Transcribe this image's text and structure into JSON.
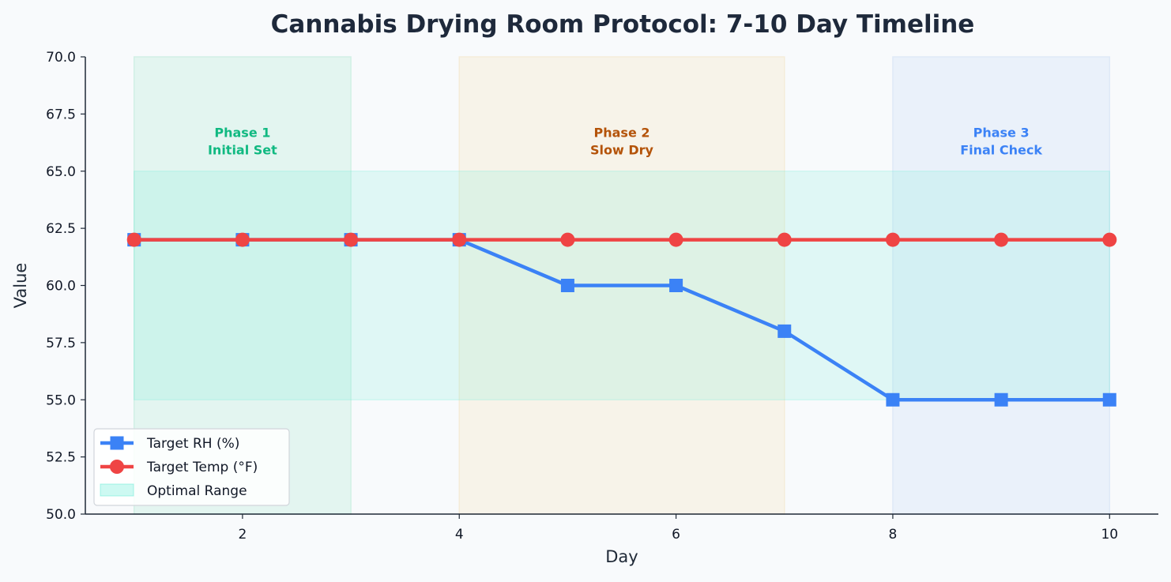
{
  "chart_data": {
    "type": "line",
    "title": "Cannabis Drying Room Protocol: 7-10 Day Timeline",
    "xlabel": "Day",
    "ylabel": "Value",
    "xlim": [
      0.55,
      10.45
    ],
    "ylim": [
      50,
      70
    ],
    "x_ticks": [
      2,
      4,
      6,
      8,
      10
    ],
    "y_ticks": [
      50.0,
      52.5,
      55.0,
      57.5,
      60.0,
      62.5,
      65.0,
      67.5,
      70.0
    ],
    "x": [
      1,
      2,
      3,
      4,
      5,
      6,
      7,
      8,
      9,
      10
    ],
    "series": [
      {
        "name": "Target RH (%)",
        "marker": "square",
        "color": "#3b82f6",
        "values": [
          62,
          62,
          62,
          62,
          60,
          60,
          58,
          55,
          55,
          55
        ]
      },
      {
        "name": "Target Temp (°F)",
        "marker": "circle",
        "color": "#ef4444",
        "values": [
          62,
          62,
          62,
          62,
          62,
          62,
          62,
          62,
          62,
          62
        ]
      }
    ],
    "optimal_range": {
      "name": "Optimal Range",
      "x": [
        1,
        10
      ],
      "y": [
        55,
        65
      ],
      "color": "#5eead4"
    },
    "phases": [
      {
        "x": [
          1,
          3
        ],
        "title": "Phase 1",
        "subtitle": "Initial Set",
        "color": "#10b981",
        "label_x": 2
      },
      {
        "x": [
          4,
          7
        ],
        "title": "Phase 2",
        "subtitle": "Slow Dry",
        "color": "#b45309",
        "label_x": 5.5
      },
      {
        "x": [
          8,
          10
        ],
        "title": "Phase 3",
        "subtitle": "Final Check",
        "color": "#3b82f6",
        "label_x": 9
      }
    ],
    "phase_band_colors": [
      "#d1f0e5",
      "#f5ecd9",
      "#dfe9f7"
    ],
    "phase_label_y": 66.5,
    "legend_position": "lower-left",
    "grid": false
  }
}
